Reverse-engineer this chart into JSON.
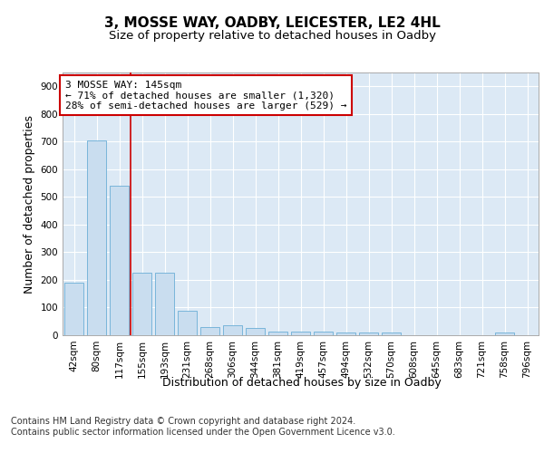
{
  "title": "3, MOSSE WAY, OADBY, LEICESTER, LE2 4HL",
  "subtitle": "Size of property relative to detached houses in Oadby",
  "xlabel": "Distribution of detached houses by size in Oadby",
  "ylabel": "Number of detached properties",
  "categories": [
    "42sqm",
    "80sqm",
    "117sqm",
    "155sqm",
    "193sqm",
    "231sqm",
    "268sqm",
    "306sqm",
    "344sqm",
    "381sqm",
    "419sqm",
    "457sqm",
    "494sqm",
    "532sqm",
    "570sqm",
    "608sqm",
    "645sqm",
    "683sqm",
    "721sqm",
    "758sqm",
    "796sqm"
  ],
  "values": [
    190,
    705,
    540,
    225,
    225,
    90,
    28,
    37,
    25,
    14,
    13,
    13,
    10,
    10,
    10,
    0,
    0,
    0,
    0,
    10,
    0
  ],
  "bar_color": "#c9ddef",
  "bar_edge_color": "#6aaed6",
  "vline_x": 2.5,
  "vline_color": "#cc0000",
  "annotation_title": "3 MOSSE WAY: 145sqm",
  "annotation_line2": "← 71% of detached houses are smaller (1,320)",
  "annotation_line3": "28% of semi-detached houses are larger (529) →",
  "annotation_box_color": "#ffffff",
  "annotation_border_color": "#cc0000",
  "ylim": [
    0,
    950
  ],
  "yticks": [
    0,
    100,
    200,
    300,
    400,
    500,
    600,
    700,
    800,
    900
  ],
  "bg_color": "#ffffff",
  "plot_bg_color": "#dce9f5",
  "grid_color": "#ffffff",
  "footer_line1": "Contains HM Land Registry data © Crown copyright and database right 2024.",
  "footer_line2": "Contains public sector information licensed under the Open Government Licence v3.0.",
  "title_fontsize": 11,
  "subtitle_fontsize": 9.5,
  "axis_label_fontsize": 9,
  "tick_fontsize": 7.5,
  "annotation_fontsize": 8,
  "footer_fontsize": 7
}
